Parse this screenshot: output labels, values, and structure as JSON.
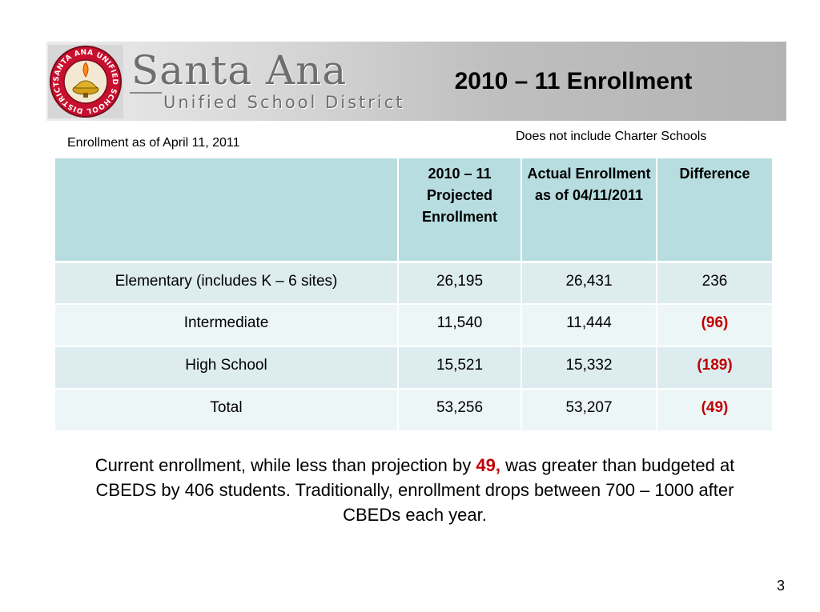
{
  "header": {
    "brand_name": "Santa Ana",
    "brand_subtitle": "Unified School District",
    "seal_text": "SANTA ANA UNIFIED SCHOOL DISTRICT",
    "title": "2010 – 11 Enrollment"
  },
  "notes": {
    "as_of": "Enrollment as of April 11, 2011",
    "exclusion": "Does not include Charter Schools"
  },
  "table": {
    "columns": [
      "",
      "2010 – 11 Projected Enrollment",
      "Actual Enrollment as of 04/11/2011",
      "Difference"
    ],
    "rows": [
      {
        "category": "Elementary (includes K – 6 sites)",
        "projected": "26,195",
        "actual": "26,431",
        "difference": "236"
      },
      {
        "category": "Intermediate",
        "projected": "11,540",
        "actual": "11,444",
        "difference": "(96)"
      },
      {
        "category": "High School",
        "projected": "15,521",
        "actual": "15,332",
        "difference": "(189)"
      },
      {
        "category": "Total",
        "projected": "53,256",
        "actual": "53,207",
        "difference": "(49)"
      }
    ]
  },
  "summary": {
    "part1": "Current enrollment, while less than projection by ",
    "highlight": "49,",
    "part2": " was greater than budgeted at CBEDS by 406 students.  Traditionally, enrollment drops between 700 – 1000 after CBEDs each year."
  },
  "page_number": "3",
  "colors": {
    "header_fill": "#b7dde0",
    "row_fill_dark": "#dcecef",
    "row_fill_light": "#edf6f7",
    "negative": "#c00000",
    "seal_red": "#c8102e"
  }
}
